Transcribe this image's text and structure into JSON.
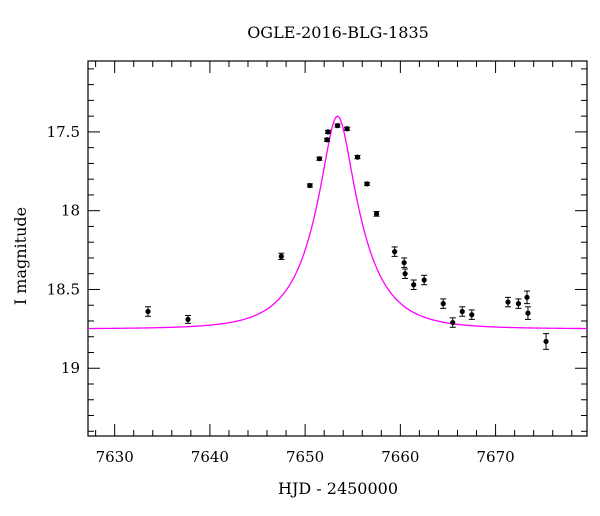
{
  "chart_data": {
    "type": "scatter",
    "title": "OGLE-2016-BLG-1835",
    "xlabel": "HJD - 2450000",
    "ylabel": "I magnitude",
    "xlim": [
      7627.2,
      7679.6
    ],
    "ylim": [
      19.43,
      17.05
    ],
    "y_inverted": true,
    "x_ticks": [
      7630,
      7640,
      7650,
      7660,
      7670
    ],
    "x_tick_labels": [
      "7630",
      "7640",
      "7650",
      "7660",
      "7670"
    ],
    "y_ticks": [
      17.5,
      18,
      18.5,
      19
    ],
    "y_tick_labels": [
      "17.5",
      "18",
      "18.5",
      "19"
    ],
    "x_minor_step": 2,
    "y_minor_step": 0.1,
    "grid": false,
    "legend": "none",
    "model_color": "#ff00ff",
    "marker_color": "#000000",
    "model": {
      "name": "",
      "type": "pspl",
      "t0": 7653.4,
      "tE": 4.86,
      "u0": 0.298,
      "baseline_mag": 18.75
    },
    "series": [
      {
        "name": "",
        "points": [
          {
            "x": 7633.5,
            "y": 18.64,
            "err": 0.03
          },
          {
            "x": 7637.7,
            "y": 18.69,
            "err": 0.025
          },
          {
            "x": 7647.5,
            "y": 18.29,
            "err": 0.02
          },
          {
            "x": 7650.5,
            "y": 17.84,
            "err": 0.01
          },
          {
            "x": 7651.5,
            "y": 17.67,
            "err": 0.01
          },
          {
            "x": 7652.3,
            "y": 17.55,
            "err": 0.01
          },
          {
            "x": 7652.4,
            "y": 17.5,
            "err": 0.01
          },
          {
            "x": 7653.4,
            "y": 17.46,
            "err": 0.01
          },
          {
            "x": 7654.4,
            "y": 17.48,
            "err": 0.01
          },
          {
            "x": 7655.5,
            "y": 17.66,
            "err": 0.01
          },
          {
            "x": 7656.5,
            "y": 17.83,
            "err": 0.01
          },
          {
            "x": 7657.5,
            "y": 18.02,
            "err": 0.015
          },
          {
            "x": 7659.4,
            "y": 18.26,
            "err": 0.03
          },
          {
            "x": 7660.4,
            "y": 18.33,
            "err": 0.03
          },
          {
            "x": 7660.5,
            "y": 18.4,
            "err": 0.03
          },
          {
            "x": 7661.4,
            "y": 18.47,
            "err": 0.03
          },
          {
            "x": 7662.5,
            "y": 18.44,
            "err": 0.03
          },
          {
            "x": 7664.5,
            "y": 18.59,
            "err": 0.03
          },
          {
            "x": 7665.5,
            "y": 18.71,
            "err": 0.03
          },
          {
            "x": 7666.5,
            "y": 18.64,
            "err": 0.03
          },
          {
            "x": 7667.5,
            "y": 18.66,
            "err": 0.03
          },
          {
            "x": 7671.3,
            "y": 18.58,
            "err": 0.03
          },
          {
            "x": 7672.4,
            "y": 18.59,
            "err": 0.03
          },
          {
            "x": 7673.3,
            "y": 18.55,
            "err": 0.04
          },
          {
            "x": 7673.4,
            "y": 18.65,
            "err": 0.04
          },
          {
            "x": 7675.3,
            "y": 18.83,
            "err": 0.05
          }
        ]
      }
    ]
  }
}
